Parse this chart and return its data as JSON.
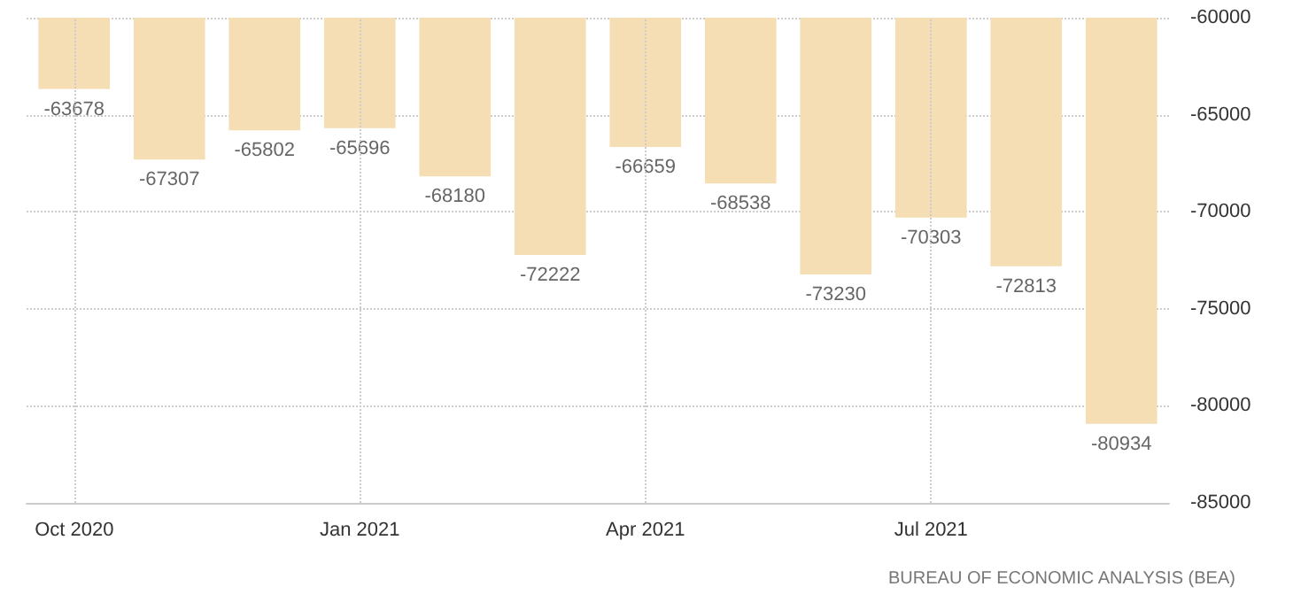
{
  "chart_data": {
    "type": "bar",
    "categories": [
      "Oct 2020",
      null,
      null,
      "Jan 2021",
      null,
      null,
      "Apr 2021",
      null,
      null,
      "Jul 2021",
      null,
      null
    ],
    "values": [
      -63678,
      -67307,
      -65802,
      -65696,
      -68180,
      -72222,
      -66659,
      -68538,
      -73230,
      -70303,
      -72813,
      -80934
    ],
    "color": "#f5deb3",
    "ylim": [
      -85000,
      -60000
    ],
    "yticks": [
      -85000,
      -80000,
      -75000,
      -70000,
      -65000,
      -60000
    ],
    "grid": true,
    "data_labels": true,
    "annotations": [
      "BUREAU OF ECONOMIC ANALYSIS (BEA)"
    ]
  }
}
